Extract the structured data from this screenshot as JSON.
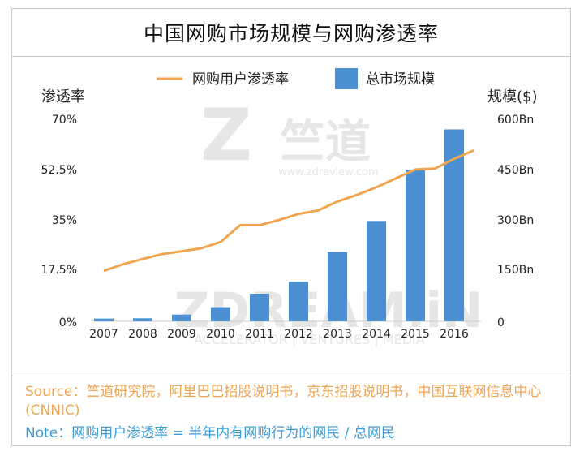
{
  "page": {
    "title": "中国网购市场规模与网购渗透率"
  },
  "watermarks": {
    "top_brand": "竺道",
    "top_url": "www.zdreview.com",
    "bottom_brand": "ZDREAM.iN",
    "bottom_sub": "ACCELERATOR | VENTURES | MEDIA"
  },
  "colors": {
    "bar": "#4a90d0",
    "line": "#f0a550",
    "source": "#f0a550",
    "note": "#3d9bd6"
  },
  "notes": {
    "source": "Source：竺道研究院，阿里巴巴招股说明书，京东招股说明书，中国互联网信息中心(CNNIC)",
    "note": "Note：网购用户渗透率 = 半年内有网购行为的网民 / 总网民"
  },
  "chart_data": {
    "type": "bar+line",
    "title": "中国网购市场规模与网购渗透率",
    "categories": [
      "2007",
      "2008",
      "2009",
      "2010",
      "2011",
      "2012",
      "2013",
      "2014",
      "2015",
      "2016"
    ],
    "legend": {
      "line": "网购用户渗透率",
      "bar": "总市场规模"
    },
    "y_left": {
      "label": "渗透率",
      "ticks": [
        "70%",
        "52.5%",
        "35%",
        "17.5%",
        "0%"
      ],
      "range": [
        0,
        70
      ]
    },
    "y_right": {
      "label": "规模($)",
      "ticks": [
        "600Bn",
        "450Bn",
        "300Bn",
        "150Bn",
        "0"
      ],
      "range": [
        0,
        600
      ]
    },
    "series": [
      {
        "name": "总市场规模",
        "type": "bar",
        "axis": "right",
        "values": [
          8,
          9,
          20,
          42,
          82,
          118,
          206,
          298,
          450,
          570
        ]
      },
      {
        "name": "网购用户渗透率",
        "type": "line",
        "axis": "left",
        "x": [
          2007.0,
          2007.5,
          2008.0,
          2008.5,
          2009.0,
          2009.5,
          2010.0,
          2010.5,
          2011.0,
          2011.5,
          2012.0,
          2012.5,
          2013.0,
          2013.5,
          2014.0,
          2014.5,
          2015.0,
          2015.5,
          2016.0,
          2016.5
        ],
        "values": [
          17.5,
          19.8,
          21.6,
          23.3,
          24.3,
          25.3,
          27.5,
          33.3,
          33.3,
          35.1,
          37.2,
          38.4,
          41.5,
          43.8,
          46.4,
          49.5,
          52.6,
          52.9,
          56.3,
          59.2
        ]
      }
    ]
  }
}
